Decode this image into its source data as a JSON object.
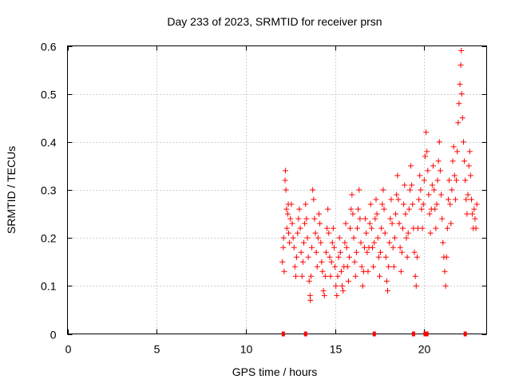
{
  "chart_data": {
    "type": "scatter",
    "title": "Day 233 of 2023, SRMTID for receiver prsn",
    "xlabel": "GPS time / hours",
    "ylabel": "SRMTID / TECUs",
    "xlim": [
      0,
      23.5
    ],
    "ylim": [
      0,
      0.6
    ],
    "xticks": [
      0,
      5,
      10,
      15,
      20
    ],
    "xtick_labels": [
      "0",
      "5",
      "10",
      "15",
      "20"
    ],
    "yticks": [
      0,
      0.1,
      0.2,
      0.3,
      0.4,
      0.5,
      0.6
    ],
    "ytick_labels": [
      "0",
      "0.1",
      "0.2",
      "0.3",
      "0.4",
      "0.5",
      "0.6"
    ],
    "grid": true,
    "marker": "plus",
    "color": "#ff0000",
    "series": [
      {
        "name": "SRMTID",
        "points": [
          [
            12.05,
            0.15
          ],
          [
            12.1,
            0.18
          ],
          [
            12.12,
            0.2
          ],
          [
            12.15,
            0.13
          ],
          [
            12.2,
            0.32
          ],
          [
            12.22,
            0.34
          ],
          [
            12.25,
            0.3
          ],
          [
            12.28,
            0.26
          ],
          [
            12.3,
            0.22
          ],
          [
            12.35,
            0.25
          ],
          [
            12.38,
            0.27
          ],
          [
            12.4,
            0.21
          ],
          [
            12.45,
            0.19
          ],
          [
            12.5,
            0.24
          ],
          [
            12.55,
            0.27
          ],
          [
            12.6,
            0.23
          ],
          [
            12.65,
            0.2
          ],
          [
            12.7,
            0.18
          ],
          [
            12.75,
            0.14
          ],
          [
            12.8,
            0.12
          ],
          [
            12.85,
            0.16
          ],
          [
            12.9,
            0.21
          ],
          [
            12.95,
            0.24
          ],
          [
            13.0,
            0.26
          ],
          [
            13.05,
            0.22
          ],
          [
            13.1,
            0.17
          ],
          [
            13.15,
            0.12
          ],
          [
            13.2,
            0.15
          ],
          [
            13.25,
            0.19
          ],
          [
            13.3,
            0.23
          ],
          [
            13.35,
            0.27
          ],
          [
            13.4,
            0.24
          ],
          [
            13.45,
            0.2
          ],
          [
            13.5,
            0.16
          ],
          [
            13.55,
            0.11
          ],
          [
            13.6,
            0.08
          ],
          [
            13.62,
            0.07
          ],
          [
            13.65,
            0.12
          ],
          [
            13.7,
            0.18
          ],
          [
            13.75,
            0.3
          ],
          [
            13.8,
            0.28
          ],
          [
            13.85,
            0.24
          ],
          [
            13.9,
            0.21
          ],
          [
            13.95,
            0.17
          ],
          [
            14.0,
            0.14
          ],
          [
            14.05,
            0.2
          ],
          [
            14.1,
            0.25
          ],
          [
            14.15,
            0.23
          ],
          [
            14.2,
            0.19
          ],
          [
            14.25,
            0.15
          ],
          [
            14.3,
            0.13
          ],
          [
            14.35,
            0.09
          ],
          [
            14.4,
            0.08
          ],
          [
            14.45,
            0.12
          ],
          [
            14.5,
            0.17
          ],
          [
            14.55,
            0.22
          ],
          [
            14.6,
            0.26
          ],
          [
            14.65,
            0.21
          ],
          [
            14.7,
            0.16
          ],
          [
            14.75,
            0.12
          ],
          [
            14.8,
            0.15
          ],
          [
            14.85,
            0.19
          ],
          [
            14.9,
            0.22
          ],
          [
            14.95,
            0.18
          ],
          [
            15.0,
            0.14
          ],
          [
            15.05,
            0.1
          ],
          [
            15.1,
            0.08
          ],
          [
            15.15,
            0.12
          ],
          [
            15.2,
            0.16
          ],
          [
            15.25,
            0.2
          ],
          [
            15.3,
            0.17
          ],
          [
            15.35,
            0.13
          ],
          [
            15.4,
            0.1
          ],
          [
            15.45,
            0.09
          ],
          [
            15.5,
            0.14
          ],
          [
            15.55,
            0.19
          ],
          [
            15.6,
            0.23
          ],
          [
            15.65,
            0.18
          ],
          [
            15.7,
            0.14
          ],
          [
            15.75,
            0.11
          ],
          [
            15.8,
            0.16
          ],
          [
            15.85,
            0.22
          ],
          [
            15.9,
            0.26
          ],
          [
            15.95,
            0.29
          ],
          [
            16.0,
            0.25
          ],
          [
            16.05,
            0.2
          ],
          [
            16.1,
            0.15
          ],
          [
            16.15,
            0.12
          ],
          [
            16.2,
            0.17
          ],
          [
            16.25,
            0.22
          ],
          [
            16.3,
            0.26
          ],
          [
            16.35,
            0.3
          ],
          [
            16.4,
            0.24
          ],
          [
            16.45,
            0.19
          ],
          [
            16.5,
            0.14
          ],
          [
            16.55,
            0.1
          ],
          [
            16.6,
            0.13
          ],
          [
            16.65,
            0.18
          ],
          [
            16.7,
            0.24
          ],
          [
            16.75,
            0.21
          ],
          [
            16.8,
            0.17
          ],
          [
            16.85,
            0.13
          ],
          [
            16.9,
            0.18
          ],
          [
            16.95,
            0.23
          ],
          [
            17.0,
            0.27
          ],
          [
            17.05,
            0.22
          ],
          [
            17.1,
            0.18
          ],
          [
            17.15,
            0.14
          ],
          [
            17.2,
            0.19
          ],
          [
            17.25,
            0.24
          ],
          [
            17.3,
            0.28
          ],
          [
            17.35,
            0.25
          ],
          [
            17.4,
            0.2
          ],
          [
            17.45,
            0.16
          ],
          [
            17.5,
            0.12
          ],
          [
            17.55,
            0.17
          ],
          [
            17.6,
            0.22
          ],
          [
            17.65,
            0.27
          ],
          [
            17.7,
            0.3
          ],
          [
            17.75,
            0.26
          ],
          [
            17.8,
            0.21
          ],
          [
            17.85,
            0.16
          ],
          [
            17.9,
            0.11
          ],
          [
            17.95,
            0.09
          ],
          [
            18.0,
            0.14
          ],
          [
            18.05,
            0.19
          ],
          [
            18.1,
            0.24
          ],
          [
            18.15,
            0.28
          ],
          [
            18.2,
            0.23
          ],
          [
            18.25,
            0.18
          ],
          [
            18.3,
            0.14
          ],
          [
            18.35,
            0.2
          ],
          [
            18.4,
            0.25
          ],
          [
            18.45,
            0.29
          ],
          [
            18.5,
            0.33
          ],
          [
            18.55,
            0.28
          ],
          [
            18.6,
            0.23
          ],
          [
            18.65,
            0.18
          ],
          [
            18.7,
            0.13
          ],
          [
            18.75,
            0.17
          ],
          [
            18.8,
            0.22
          ],
          [
            18.85,
            0.27
          ],
          [
            18.9,
            0.31
          ],
          [
            18.95,
            0.25
          ],
          [
            19.0,
            0.2
          ],
          [
            19.05,
            0.16
          ],
          [
            19.1,
            0.21
          ],
          [
            19.15,
            0.26
          ],
          [
            19.2,
            0.3
          ],
          [
            19.25,
            0.35
          ],
          [
            19.3,
            0.31
          ],
          [
            19.35,
            0.27
          ],
          [
            19.4,
            0.22
          ],
          [
            19.45,
            0.17
          ],
          [
            19.5,
            0.12
          ],
          [
            19.55,
            0.1
          ],
          [
            19.6,
            0.16
          ],
          [
            19.65,
            0.22
          ],
          [
            19.7,
            0.28
          ],
          [
            19.75,
            0.33
          ],
          [
            19.8,
            0.3
          ],
          [
            19.85,
            0.26
          ],
          [
            19.9,
            0.22
          ],
          [
            19.95,
            0.27
          ],
          [
            20.0,
            0.32
          ],
          [
            20.05,
            0.37
          ],
          [
            20.1,
            0.42
          ],
          [
            20.15,
            0.38
          ],
          [
            20.2,
            0.34
          ],
          [
            20.25,
            0.29
          ],
          [
            20.3,
            0.25
          ],
          [
            20.35,
            0.21
          ],
          [
            20.4,
            0.26
          ],
          [
            20.45,
            0.31
          ],
          [
            20.5,
            0.35
          ],
          [
            20.55,
            0.3
          ],
          [
            20.6,
            0.26
          ],
          [
            20.65,
            0.22
          ],
          [
            20.7,
            0.27
          ],
          [
            20.75,
            0.32
          ],
          [
            20.8,
            0.36
          ],
          [
            20.85,
            0.4
          ],
          [
            20.9,
            0.34
          ],
          [
            20.95,
            0.29
          ],
          [
            21.0,
            0.24
          ],
          [
            21.05,
            0.19
          ],
          [
            21.1,
            0.16
          ],
          [
            21.15,
            0.13
          ],
          [
            21.2,
            0.1
          ],
          [
            21.25,
            0.16
          ],
          [
            21.3,
            0.22
          ],
          [
            21.35,
            0.28
          ],
          [
            21.4,
            0.32
          ],
          [
            21.45,
            0.27
          ],
          [
            21.5,
            0.23
          ],
          [
            21.55,
            0.3
          ],
          [
            21.6,
            0.36
          ],
          [
            21.65,
            0.39
          ],
          [
            21.7,
            0.33
          ],
          [
            21.75,
            0.28
          ],
          [
            21.8,
            0.32
          ],
          [
            21.85,
            0.38
          ],
          [
            21.9,
            0.44
          ],
          [
            21.95,
            0.48
          ],
          [
            22.0,
            0.52
          ],
          [
            22.05,
            0.56
          ],
          [
            22.08,
            0.59
          ],
          [
            22.1,
            0.5
          ],
          [
            22.15,
            0.45
          ],
          [
            22.2,
            0.4
          ],
          [
            22.25,
            0.36
          ],
          [
            22.3,
            0.32
          ],
          [
            22.35,
            0.28
          ],
          [
            22.4,
            0.25
          ],
          [
            22.45,
            0.29
          ],
          [
            22.5,
            0.35
          ],
          [
            22.55,
            0.38
          ],
          [
            22.6,
            0.33
          ],
          [
            22.65,
            0.28
          ],
          [
            22.7,
            0.25
          ],
          [
            22.75,
            0.22
          ],
          [
            22.8,
            0.26
          ],
          [
            22.85,
            0.24
          ],
          [
            22.9,
            0.22
          ],
          [
            22.95,
            0.27
          ]
        ]
      }
    ],
    "zero_markers": [
      12.1,
      13.35,
      17.2,
      19.4,
      20.05,
      20.15,
      22.3
    ]
  }
}
